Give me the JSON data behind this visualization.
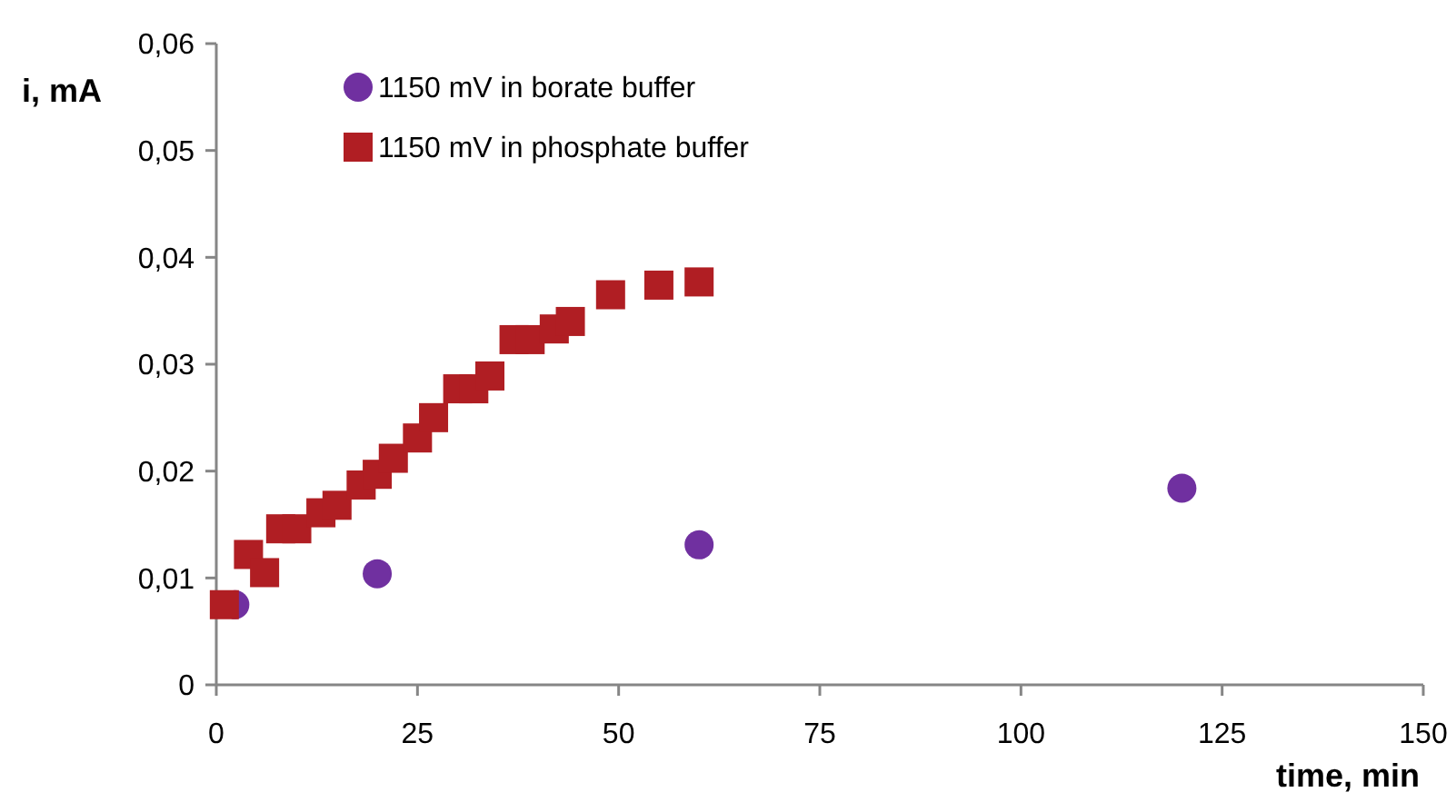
{
  "chart_data": {
    "type": "scatter",
    "xlabel": "time, min",
    "ylabel": "i, mA",
    "xlim": [
      0,
      150
    ],
    "xticks": [
      0,
      25,
      50,
      75,
      100,
      125,
      150
    ],
    "ylim": [
      0,
      0.06
    ],
    "yticks": [
      {
        "value": 0,
        "label": "0"
      },
      {
        "value": 0.01,
        "label": "0,01"
      },
      {
        "value": 0.02,
        "label": "0,02"
      },
      {
        "value": 0.03,
        "label": "0,03"
      },
      {
        "value": 0.04,
        "label": "0,04"
      },
      {
        "value": 0.05,
        "label": "0,05"
      },
      {
        "value": 0.06,
        "label": "0,06"
      }
    ],
    "grid": false,
    "legend": "top left",
    "series": [
      {
        "name": "1150 mV in borate buffer",
        "color": "#7030a0",
        "marker": "circle",
        "x": [
          2.3,
          20,
          60,
          120
        ],
        "values": [
          0.0075,
          0.0104,
          0.0131,
          0.0184
        ]
      },
      {
        "name": "1150 mV in phosphate buffer",
        "color": "#b01e23",
        "marker": "square",
        "x": [
          1,
          4,
          6,
          8,
          10,
          13,
          15,
          18,
          20,
          22,
          25,
          27,
          30,
          32,
          34,
          37,
          39,
          42,
          44,
          49,
          55,
          60
        ],
        "values": [
          0.0075,
          0.0122,
          0.0105,
          0.0146,
          0.0146,
          0.0161,
          0.0168,
          0.0187,
          0.0197,
          0.0212,
          0.0231,
          0.025,
          0.0277,
          0.0277,
          0.0289,
          0.0323,
          0.0323,
          0.0333,
          0.034,
          0.0365,
          0.0374,
          0.0377
        ]
      }
    ]
  }
}
